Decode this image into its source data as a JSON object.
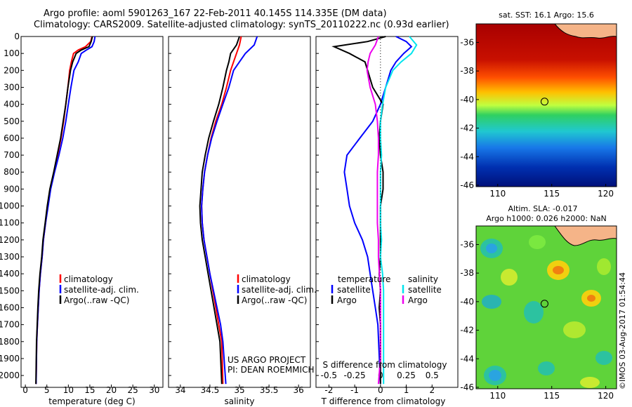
{
  "titles": {
    "line1": "Argo profile: aoml 5901263_167 22-Feb-2011 40.145S 114.335E (DM data)",
    "line2": "Climatology: CARS2009. Satellite-adjusted climatology: synTS_20110222.nc (0.93d earlier)"
  },
  "credit": "©IMOS 03-Aug-2017 01:54:44",
  "colors": {
    "climatology": "#ff0000",
    "satellite": "#0000ff",
    "argo": "#000000",
    "satellite_salinity": "#00e5ee",
    "argo_salinity": "#ee00ee"
  },
  "depth_axis": {
    "range": [
      0,
      2070
    ],
    "ticks": [
      0,
      100,
      200,
      300,
      400,
      500,
      600,
      700,
      800,
      900,
      1000,
      1100,
      1200,
      1300,
      1400,
      1500,
      1600,
      1700,
      1800,
      1900,
      2000
    ]
  },
  "panels": {
    "temperature": {
      "xlabel": "temperature (deg C)",
      "xlim": [
        -1,
        32
      ],
      "xticks": [
        0,
        5,
        10,
        15,
        20,
        25,
        30
      ],
      "legend": [
        "climatology",
        "satellite-adj. clim.",
        "Argo(..raw -QC)"
      ]
    },
    "salinity": {
      "xlabel": "salinity",
      "xlim": [
        33.8,
        36.2
      ],
      "xticks": [
        34,
        34.5,
        35,
        35.5,
        36
      ],
      "legend": [
        "climatology",
        "satellite-adj. clim.",
        "Argo(..raw -QC)"
      ],
      "project_lines": [
        "US ARGO PROJECT",
        "PI: DEAN ROEMMICH"
      ]
    },
    "difference": {
      "xlabel": "T difference from climatology",
      "xlim": [
        -2.5,
        3
      ],
      "xticks": [
        -2,
        -1,
        0,
        1,
        2
      ],
      "top_label": "S difference from climatology",
      "s_ticks": [
        "-0.5",
        "-0.25",
        "0",
        "0.25",
        "0.5"
      ],
      "legend_temperature": [
        "temperature",
        "satellite",
        "Argo"
      ],
      "legend_salinity": [
        "salinity",
        "satellite",
        "Argo"
      ]
    }
  },
  "maps": {
    "sst": {
      "title": "sat. SST: 16.1  Argo: 15.6",
      "xticks": [
        110,
        115,
        120
      ],
      "yticks": [
        -36,
        -38,
        -40,
        -42,
        -44,
        -46
      ],
      "argo_position": {
        "lon": 114.335,
        "lat": -40.145
      }
    },
    "sla": {
      "title_line1": "Altim. SLA: -0.017",
      "title_line2": "Argo h1000: 0.026 h2000: NaN",
      "xticks": [
        110,
        115,
        120
      ],
      "yticks": [
        -36,
        -38,
        -40,
        -42,
        -44,
        -46
      ],
      "argo_position": {
        "lon": 114.335,
        "lat": -40.145
      }
    }
  },
  "chart_data": [
    {
      "type": "line",
      "title": "",
      "xlabel": "temperature (deg C)",
      "ylabel": "",
      "xlim": [
        -1,
        32
      ],
      "ylim": [
        2070,
        0
      ],
      "series": [
        {
          "name": "climatology",
          "x": [
            15.5,
            15.2,
            14.0,
            12.3,
            11.2,
            10.7,
            10.3,
            9.9,
            9.4,
            8.9,
            8.3,
            7.5,
            6.7,
            5.8,
            5.2,
            4.7,
            4.2,
            3.9,
            3.5,
            3.2,
            3.0,
            2.8,
            2.65,
            2.5
          ],
          "y": [
            0,
            30,
            60,
            80,
            100,
            150,
            200,
            300,
            400,
            500,
            600,
            700,
            800,
            900,
            1000,
            1100,
            1200,
            1300,
            1400,
            1500,
            1600,
            1700,
            1800,
            2050
          ]
        },
        {
          "name": "satellite-adj. clim.",
          "x": [
            16.2,
            16.0,
            15.5,
            14.2,
            13.0,
            12.3,
            11.3,
            10.6,
            10.0,
            9.4,
            8.7,
            7.8,
            6.8,
            5.9,
            5.3,
            4.7,
            4.2,
            3.9,
            3.5,
            3.2,
            3.0,
            2.8,
            2.65,
            2.5
          ],
          "y": [
            0,
            30,
            60,
            80,
            100,
            150,
            200,
            300,
            400,
            500,
            600,
            700,
            800,
            900,
            1000,
            1100,
            1200,
            1300,
            1400,
            1500,
            1600,
            1700,
            1800,
            2050
          ]
        },
        {
          "name": "Argo(..raw -QC)",
          "x": [
            15.6,
            15.3,
            14.8,
            13.0,
            11.8,
            11.0,
            10.5,
            9.9,
            9.4,
            8.8,
            8.2,
            7.4,
            6.6,
            5.7,
            5.1,
            4.6,
            4.1,
            3.8,
            3.4,
            3.1,
            2.9,
            2.75,
            2.6,
            2.45
          ],
          "y": [
            0,
            30,
            60,
            80,
            100,
            150,
            200,
            300,
            400,
            500,
            600,
            700,
            800,
            900,
            1000,
            1100,
            1200,
            1300,
            1400,
            1500,
            1600,
            1700,
            1800,
            2050
          ]
        }
      ]
    },
    {
      "type": "line",
      "title": "",
      "xlabel": "salinity",
      "ylabel": "",
      "xlim": [
        33.8,
        36.2
      ],
      "ylim": [
        2070,
        0
      ],
      "series": [
        {
          "name": "climatology",
          "x": [
            35.03,
            35.0,
            34.95,
            34.9,
            34.85,
            34.78,
            34.7,
            34.6,
            34.52,
            34.46,
            34.41,
            34.38,
            34.36,
            34.37,
            34.4,
            34.45,
            34.5,
            34.55,
            34.6,
            34.65,
            34.7,
            34.72
          ],
          "y": [
            0,
            50,
            100,
            150,
            200,
            300,
            400,
            500,
            600,
            700,
            800,
            900,
            1000,
            1100,
            1200,
            1300,
            1400,
            1500,
            1600,
            1700,
            1800,
            2050
          ]
        },
        {
          "name": "satellite-adj. clim.",
          "x": [
            35.3,
            35.25,
            35.1,
            35.0,
            34.9,
            34.82,
            34.72,
            34.62,
            34.53,
            34.46,
            34.41,
            34.38,
            34.36,
            34.37,
            34.4,
            34.45,
            34.5,
            34.56,
            34.62,
            34.68,
            34.72,
            34.77
          ],
          "y": [
            0,
            50,
            100,
            150,
            200,
            300,
            400,
            500,
            600,
            700,
            800,
            900,
            1000,
            1100,
            1200,
            1300,
            1400,
            1500,
            1600,
            1700,
            1800,
            2050
          ]
        },
        {
          "name": "Argo(..raw -QC)",
          "x": [
            35.0,
            34.95,
            34.85,
            34.82,
            34.78,
            34.72,
            34.65,
            34.56,
            34.48,
            34.42,
            34.37,
            34.35,
            34.33,
            34.34,
            34.37,
            34.42,
            34.47,
            34.52,
            34.57,
            34.62,
            34.67,
            34.7
          ],
          "y": [
            0,
            50,
            100,
            150,
            200,
            300,
            400,
            500,
            600,
            700,
            800,
            900,
            1000,
            1100,
            1200,
            1300,
            1400,
            1500,
            1600,
            1700,
            1800,
            2050
          ]
        }
      ]
    },
    {
      "type": "line",
      "title": "",
      "xlabel": "T difference from climatology",
      "ylabel": "",
      "xlim": [
        -2.5,
        3
      ],
      "ylim": [
        2070,
        0
      ],
      "series": [
        {
          "name": "satellite",
          "x": [
            0.6,
            1.0,
            1.2,
            0.9,
            0.6,
            0.4,
            0.2,
            0.0,
            -0.3,
            -0.8,
            -1.3,
            -1.4,
            -1.3,
            -1.2,
            -1.0,
            -0.7,
            -0.5,
            -0.4,
            -0.3,
            -0.2,
            -0.1,
            0.0
          ],
          "y": [
            0,
            30,
            60,
            100,
            150,
            200,
            300,
            400,
            500,
            600,
            700,
            800,
            900,
            1000,
            1100,
            1200,
            1300,
            1400,
            1500,
            1600,
            1700,
            2050
          ]
        },
        {
          "name": "Argo",
          "x": [
            0.2,
            -0.5,
            -1.8,
            -1.2,
            -0.6,
            -0.5,
            -0.3,
            0.1,
            0.0,
            -0.05,
            0.0,
            0.1,
            0.1,
            0.0,
            0.0,
            0.0,
            0.0,
            -0.05,
            0.0,
            -0.05,
            0.0,
            0.0
          ],
          "y": [
            0,
            30,
            60,
            100,
            150,
            200,
            300,
            400,
            500,
            600,
            700,
            800,
            900,
            1000,
            1100,
            1200,
            1300,
            1400,
            1500,
            1600,
            1700,
            2050
          ]
        }
      ]
    },
    {
      "type": "line",
      "title": "S difference from climatology",
      "xlabel": "",
      "ylabel": "",
      "xlim": [
        -0.625,
        0.75
      ],
      "ylim": [
        2070,
        0
      ],
      "series": [
        {
          "name": "satellite",
          "x": [
            0.28,
            0.35,
            0.3,
            0.2,
            0.12,
            0.05,
            0.02,
            0.0,
            0.0,
            0.01,
            0.0,
            0.0,
            0.0,
            0.0,
            0.01,
            0.0,
            0.02,
            0.03,
            0.03,
            0.03,
            0.03
          ],
          "y": [
            0,
            50,
            100,
            150,
            200,
            300,
            400,
            500,
            600,
            700,
            800,
            900,
            1000,
            1100,
            1200,
            1300,
            1400,
            1500,
            1700,
            1900,
            2050
          ]
        },
        {
          "name": "Argo",
          "x": [
            -0.02,
            -0.05,
            -0.1,
            -0.12,
            -0.13,
            -0.1,
            -0.05,
            -0.03,
            -0.02,
            -0.02,
            -0.03,
            -0.03,
            -0.03,
            -0.03,
            -0.02,
            -0.02,
            -0.01,
            0.0,
            0.0,
            0.0,
            -0.02
          ],
          "y": [
            0,
            50,
            100,
            150,
            200,
            300,
            400,
            500,
            600,
            700,
            800,
            900,
            1000,
            1100,
            1200,
            1300,
            1400,
            1500,
            1700,
            1900,
            2050
          ]
        }
      ]
    }
  ]
}
